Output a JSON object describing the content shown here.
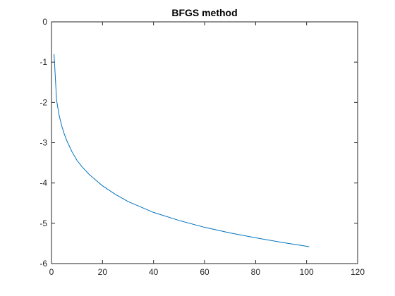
{
  "chart_data": {
    "type": "line",
    "title": "BFGS method",
    "xlabel": "",
    "ylabel": "",
    "xlim": [
      0,
      120
    ],
    "ylim": [
      -6,
      0
    ],
    "xticks": [
      0,
      20,
      40,
      60,
      80,
      100,
      120
    ],
    "yticks": [
      0,
      -1,
      -2,
      -3,
      -4,
      -5,
      -6
    ],
    "grid": false,
    "series": [
      {
        "color": "#0072BD",
        "x": [
          1,
          2,
          3,
          4,
          5,
          6,
          8,
          10,
          12,
          15,
          20,
          25,
          30,
          40,
          50,
          60,
          70,
          80,
          90,
          101
        ],
        "y": [
          -0.8,
          -1.95,
          -2.32,
          -2.58,
          -2.78,
          -2.95,
          -3.22,
          -3.44,
          -3.6,
          -3.8,
          -4.07,
          -4.28,
          -4.46,
          -4.73,
          -4.93,
          -5.1,
          -5.24,
          -5.36,
          -5.47,
          -5.58
        ]
      }
    ]
  }
}
